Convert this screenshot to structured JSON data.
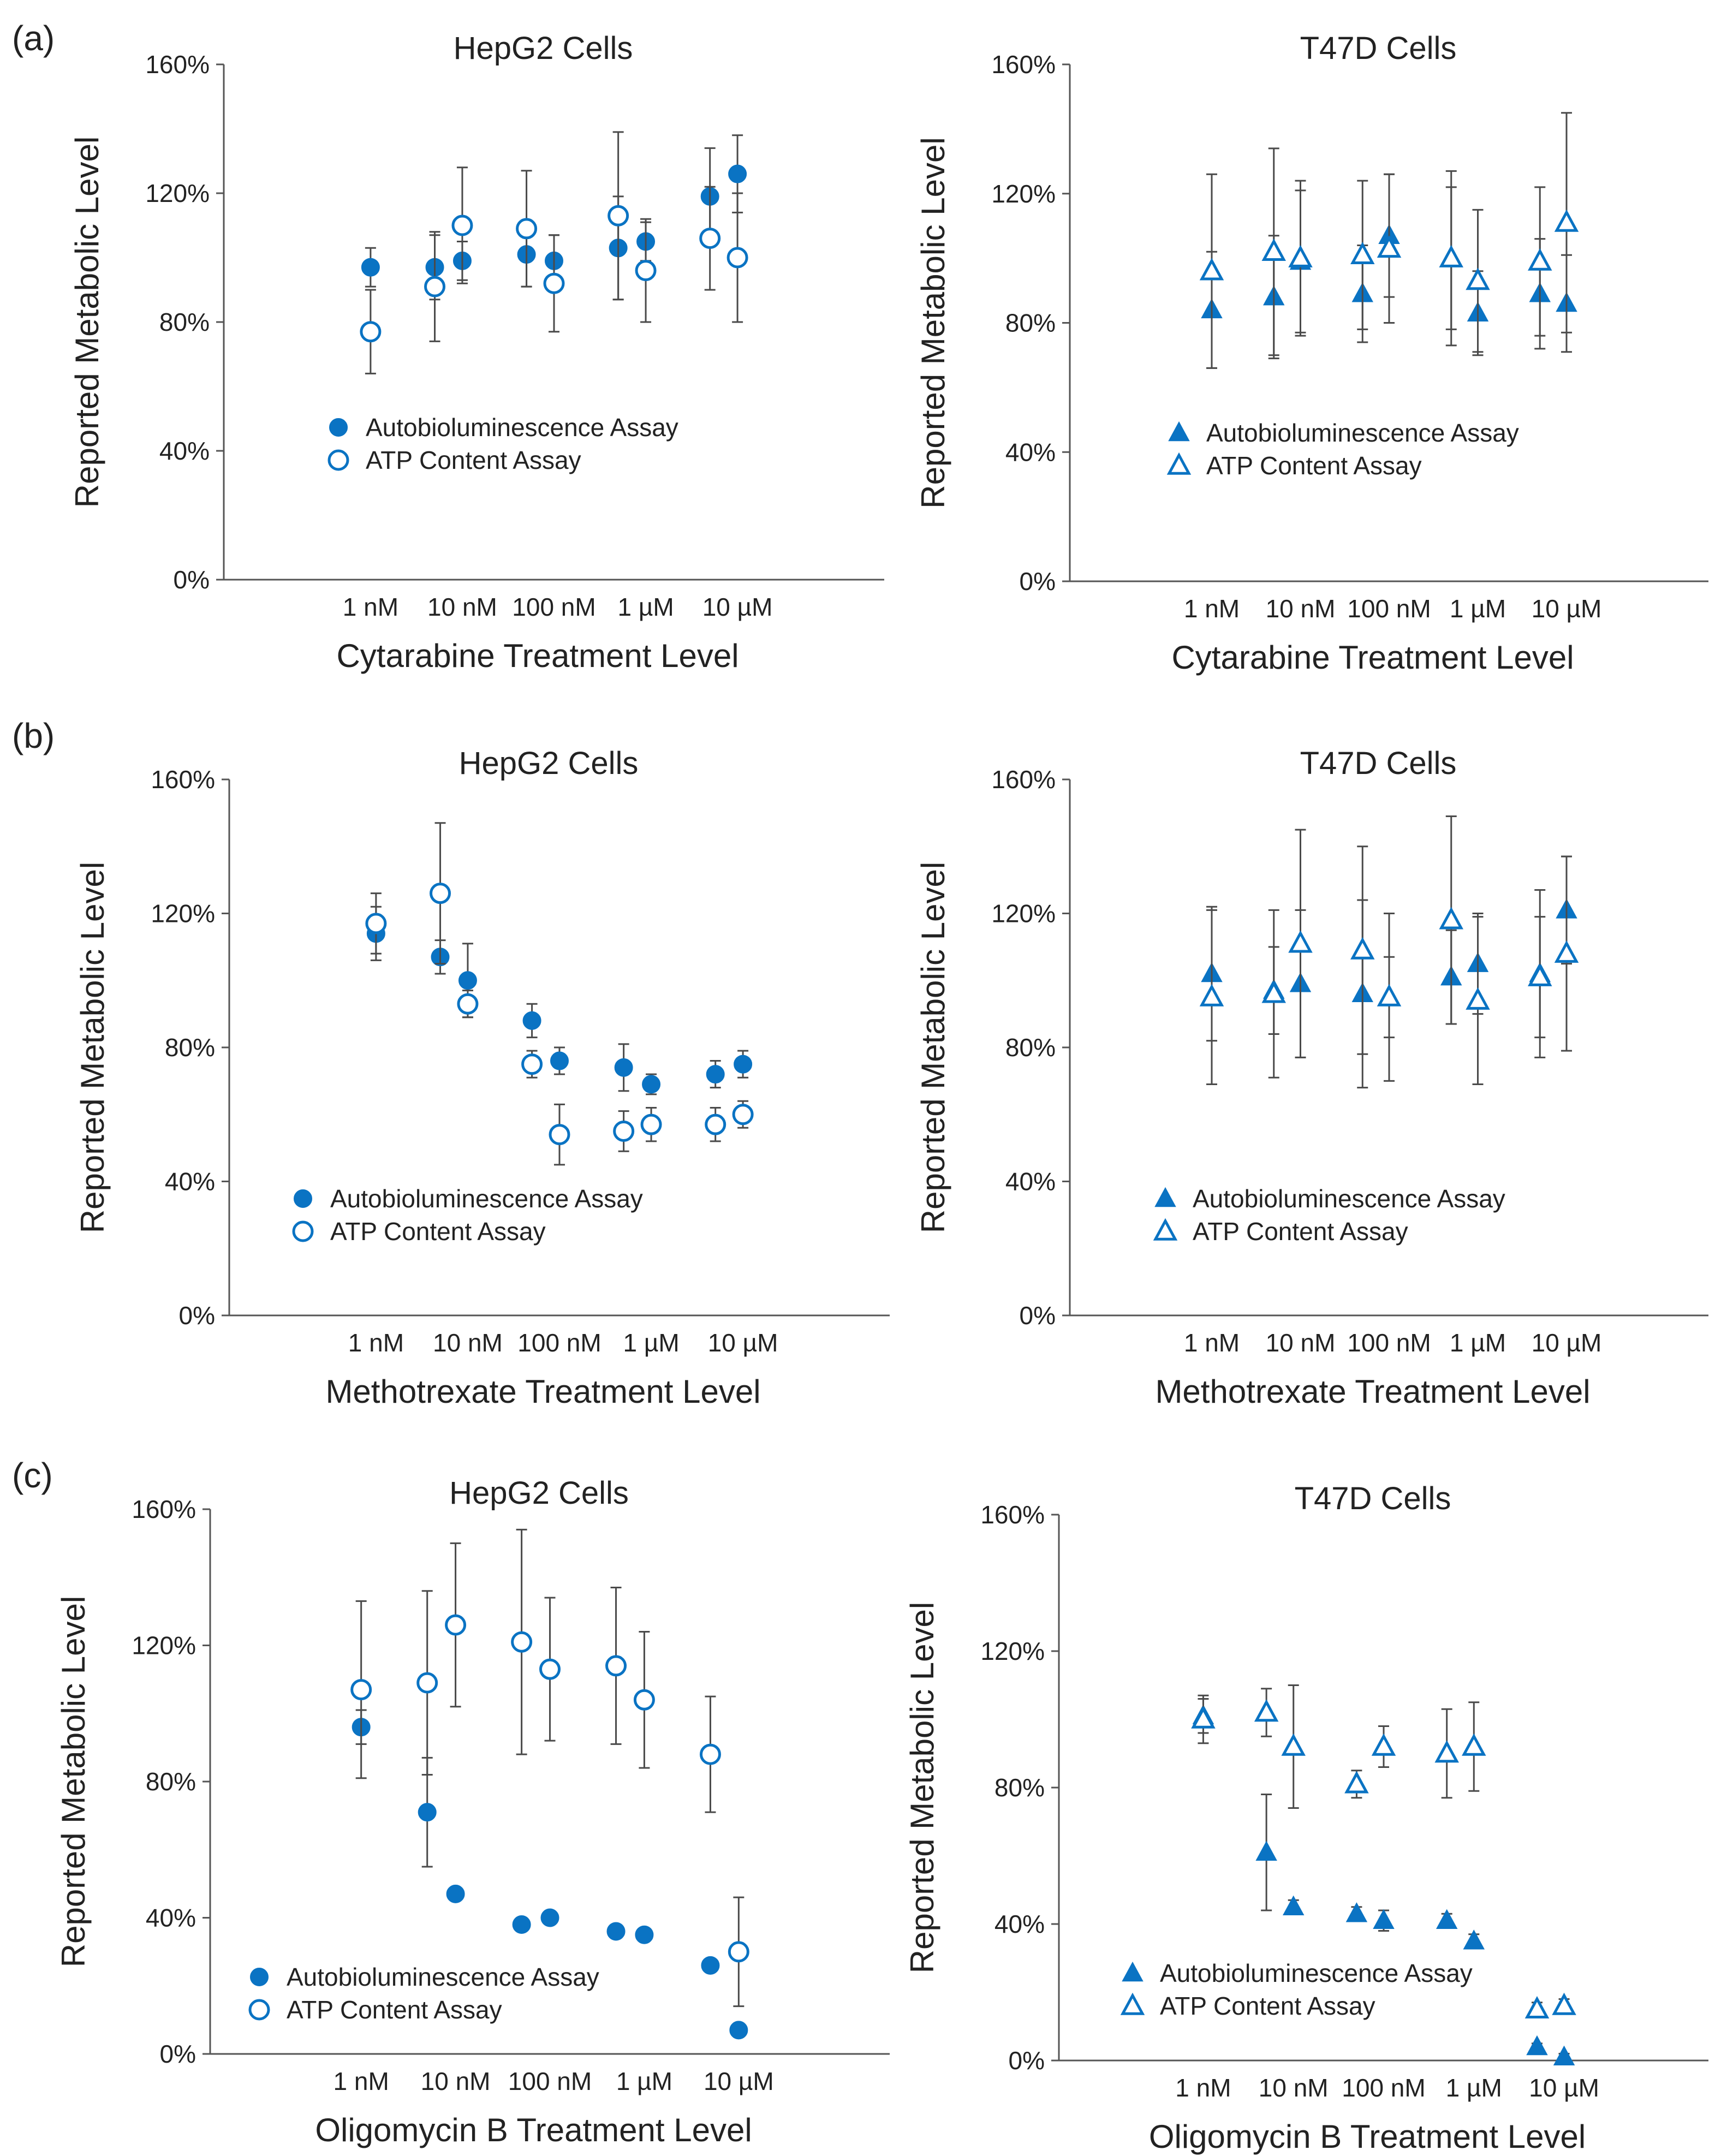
{
  "figure": {
    "panel_labels": [
      "(a)",
      "(b)",
      "(c)"
    ]
  },
  "colors": {
    "marker": "#0a73c3",
    "errorbar": "#4a4a4a",
    "axis": "#555555",
    "text": "#222222"
  },
  "chart_data": [
    {
      "type": "scatter",
      "title": "HepG2 Cells",
      "xlabel": "Cytarabine Treatment Level",
      "ylabel": "Reported Metabolic Level",
      "ylim": [
        0,
        160
      ],
      "yticks": [
        "0%",
        "40%",
        "80%",
        "120%",
        "160%"
      ],
      "xlim": [
        -10.6,
        -3.4
      ],
      "xscale": "log10 concentration (M)",
      "xticks": [
        {
          "value": -9,
          "label": "1 nM"
        },
        {
          "value": -8,
          "label": "10 nM"
        },
        {
          "value": -7,
          "label": "100 nM"
        },
        {
          "value": -6,
          "label": "1 µM"
        },
        {
          "value": -5,
          "label": "10 µM"
        }
      ],
      "legend": "left-lower",
      "series": [
        {
          "name": "Autobioluminescence Assay",
          "marker": "filled-circle",
          "x": [
            -9,
            -8.3,
            -8,
            -7.3,
            -7,
            -6.3,
            -6,
            -5.3,
            -5
          ],
          "values": [
            97,
            97,
            99,
            101,
            99,
            103,
            105,
            119,
            126
          ],
          "err": [
            6,
            10,
            6,
            10,
            8,
            16,
            6,
            15,
            12
          ]
        },
        {
          "name": "ATP Content Assay",
          "marker": "open-circle",
          "x": [
            -9,
            -8.3,
            -8,
            -7.3,
            -7,
            -6.3,
            -6,
            -5.3,
            -5
          ],
          "values": [
            77,
            91,
            110,
            109,
            92,
            113,
            96,
            106,
            100
          ],
          "err": [
            13,
            17,
            18,
            18,
            15,
            26,
            16,
            16,
            20
          ]
        }
      ]
    },
    {
      "type": "scatter",
      "title": "T47D Cells",
      "xlabel": "Cytarabine Treatment Level",
      "ylabel": "Reported Metabolic Level",
      "ylim": [
        0,
        160
      ],
      "yticks": [
        "0%",
        "40%",
        "80%",
        "120%",
        "160%"
      ],
      "xlim": [
        -10.6,
        -3.4
      ],
      "xscale": "log10 concentration (M)",
      "xticks": [
        {
          "value": -9,
          "label": "1 nM"
        },
        {
          "value": -8,
          "label": "10 nM"
        },
        {
          "value": -7,
          "label": "100 nM"
        },
        {
          "value": -6,
          "label": "1 µM"
        },
        {
          "value": -5,
          "label": "10 µM"
        }
      ],
      "legend": "center",
      "series": [
        {
          "name": "Autobioluminescence Assay",
          "marker": "filled-triangle",
          "x": [
            -9,
            -8.3,
            -8,
            -7.3,
            -7,
            -6.3,
            -6,
            -5.3,
            -5
          ],
          "values": [
            84,
            88,
            99,
            89,
            107,
            100,
            83,
            89,
            86
          ],
          "err": [
            18,
            19,
            22,
            15,
            19,
            27,
            13,
            17,
            15
          ]
        },
        {
          "name": "ATP Content Assay",
          "marker": "open-triangle",
          "x": [
            -9,
            -8.3,
            -8,
            -7.3,
            -7,
            -6.3,
            -6,
            -5.3,
            -5
          ],
          "values": [
            96,
            102,
            100,
            101,
            103,
            100,
            93,
            99,
            111
          ],
          "err": [
            30,
            32,
            24,
            23,
            23,
            22,
            22,
            23,
            34
          ]
        }
      ]
    },
    {
      "type": "scatter",
      "title": "HepG2 Cells",
      "xlabel": "Methotrexate Treatment Level",
      "ylabel": "Reported Metabolic Level",
      "ylim": [
        0,
        160
      ],
      "yticks": [
        "0%",
        "40%",
        "80%",
        "120%",
        "160%"
      ],
      "xlim": [
        -10.6,
        -3.4
      ],
      "xscale": "log10 concentration (M)",
      "xticks": [
        {
          "value": -9,
          "label": "1 nM"
        },
        {
          "value": -8,
          "label": "10 nM"
        },
        {
          "value": -7,
          "label": "100 nM"
        },
        {
          "value": -6,
          "label": "1 µM"
        },
        {
          "value": -5,
          "label": "10 µM"
        }
      ],
      "legend": "left-lower",
      "series": [
        {
          "name": "Autobioluminescence Assay",
          "marker": "filled-circle",
          "x": [
            -9,
            -8.3,
            -8,
            -7.3,
            -7,
            -6.3,
            -6,
            -5.3,
            -5
          ],
          "values": [
            114,
            107,
            100,
            88,
            76,
            74,
            69,
            72,
            75
          ],
          "err": [
            8,
            5,
            11,
            5,
            4,
            7,
            3,
            4,
            4
          ]
        },
        {
          "name": "ATP Content Assay",
          "marker": "open-circle",
          "x": [
            -9,
            -8.3,
            -8,
            -7.3,
            -7,
            -6.3,
            -6,
            -5.3,
            -5
          ],
          "values": [
            117,
            126,
            93,
            75,
            54,
            55,
            57,
            57,
            60
          ],
          "err": [
            9,
            21,
            4,
            4,
            9,
            6,
            5,
            5,
            4
          ]
        }
      ]
    },
    {
      "type": "scatter",
      "title": "T47D Cells",
      "xlabel": "Methotrexate Treatment Level",
      "ylabel": "Reported Metabolic Level",
      "ylim": [
        0,
        160
      ],
      "yticks": [
        "0%",
        "40%",
        "80%",
        "120%",
        "160%"
      ],
      "xlim": [
        -10.6,
        -3.4
      ],
      "xscale": "log10 concentration (M)",
      "xticks": [
        {
          "value": -9,
          "label": "1 nM"
        },
        {
          "value": -8,
          "label": "10 nM"
        },
        {
          "value": -7,
          "label": "100 nM"
        },
        {
          "value": -6,
          "label": "1 µM"
        },
        {
          "value": -5,
          "label": "10 µM"
        }
      ],
      "legend": "center",
      "series": [
        {
          "name": "Autobioluminescence Assay",
          "marker": "filled-triangle",
          "x": [
            -9,
            -8.3,
            -8,
            -7.3,
            -7,
            -6.3,
            -6,
            -5.3,
            -5
          ],
          "values": [
            102,
            97,
            99,
            96,
            95,
            101,
            105,
            102,
            121
          ],
          "err": [
            20,
            13,
            22,
            28,
            12,
            14,
            15,
            25,
            16
          ]
        },
        {
          "name": "ATP Content Assay",
          "marker": "open-triangle",
          "x": [
            -9,
            -8.3,
            -8,
            -7.3,
            -7,
            -6.3,
            -6,
            -5.3,
            -5
          ],
          "values": [
            95,
            96,
            111,
            109,
            95,
            118,
            94,
            101,
            108
          ],
          "err": [
            26,
            25,
            34,
            31,
            25,
            31,
            25,
            18,
            29
          ]
        }
      ]
    },
    {
      "type": "scatter",
      "title": "HepG2 Cells",
      "xlabel": "Oligomycin B Treatment Level",
      "ylabel": "Reported Metabolic Level",
      "ylim": [
        0,
        160
      ],
      "yticks": [
        "0%",
        "40%",
        "80%",
        "120%",
        "160%"
      ],
      "xlim": [
        -10.6,
        -3.4
      ],
      "xscale": "log10 concentration (M)",
      "xticks": [
        {
          "value": -9,
          "label": "1 nM"
        },
        {
          "value": -8,
          "label": "10 nM"
        },
        {
          "value": -7,
          "label": "100 nM"
        },
        {
          "value": -6,
          "label": "1 µM"
        },
        {
          "value": -5,
          "label": "10 µM"
        }
      ],
      "legend": "left-lower",
      "series": [
        {
          "name": "Autobioluminescence Assay",
          "marker": "filled-circle",
          "x": [
            -9,
            -8.3,
            -8,
            -7.3,
            -7,
            -6.3,
            -6,
            -5.3,
            -5
          ],
          "values": [
            96,
            71,
            47,
            38,
            40,
            36,
            35,
            26,
            7
          ],
          "err": [
            5,
            16,
            0,
            0,
            0,
            0,
            0,
            1,
            2
          ]
        },
        {
          "name": "ATP Content Assay",
          "marker": "open-circle",
          "x": [
            -9,
            -8.3,
            -8,
            -7.3,
            -7,
            -6.3,
            -6,
            -5.3,
            -5
          ],
          "values": [
            107,
            109,
            126,
            121,
            113,
            114,
            104,
            88,
            30
          ],
          "err": [
            26,
            27,
            24,
            33,
            21,
            23,
            20,
            17,
            16
          ]
        }
      ]
    },
    {
      "type": "scatter",
      "title": "T47D Cells",
      "xlabel": "Oligomycin B Treatment Level",
      "ylabel": "Reported Metabolic Level",
      "ylim": [
        0,
        160
      ],
      "yticks": [
        "0%",
        "40%",
        "80%",
        "120%",
        "160%"
      ],
      "xlim": [
        -10.6,
        -3.4
      ],
      "xscale": "log10 concentration (M)",
      "xticks": [
        {
          "value": -9,
          "label": "1 nM"
        },
        {
          "value": -8,
          "label": "10 nM"
        },
        {
          "value": -7,
          "label": "100 nM"
        },
        {
          "value": -6,
          "label": "1 µM"
        },
        {
          "value": -5,
          "label": "10 µM"
        }
      ],
      "legend": "left-lower",
      "series": [
        {
          "name": "Autobioluminescence Assay",
          "marker": "filled-triangle",
          "x": [
            -9,
            -8.3,
            -8,
            -7.3,
            -7,
            -6.3,
            -6,
            -5.3,
            -5
          ],
          "values": [
            101,
            61,
            45,
            43,
            41,
            41,
            35,
            4,
            1
          ],
          "err": [
            5,
            17,
            2,
            2,
            3,
            2,
            2,
            1,
            1
          ]
        },
        {
          "name": "ATP Content Assay",
          "marker": "open-triangle",
          "x": [
            -9,
            -8.3,
            -8,
            -7.3,
            -7,
            -6.3,
            -6,
            -5.3,
            -5
          ],
          "values": [
            100,
            102,
            92,
            81,
            92,
            90,
            92,
            15,
            16
          ],
          "err": [
            7,
            7,
            18,
            4,
            6,
            13,
            13,
            2,
            2
          ]
        }
      ]
    }
  ]
}
